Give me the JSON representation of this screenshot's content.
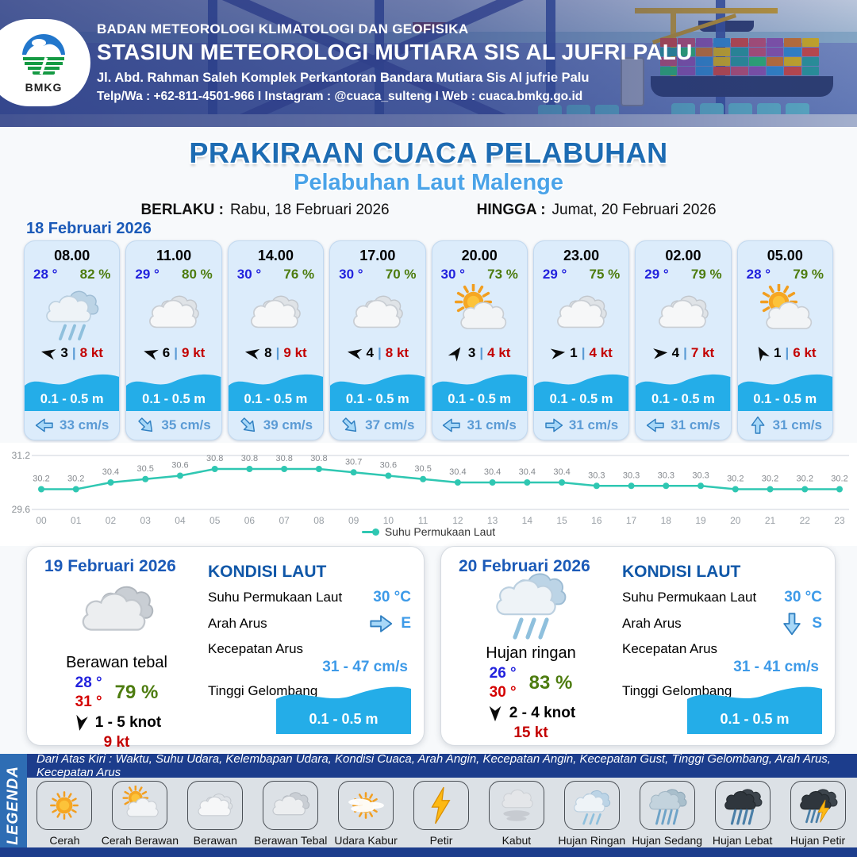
{
  "header": {
    "agency": "BADAN METEOROLOGI KLIMATOLOGI DAN GEOFISIKA",
    "station": "STASIUN METEOROLOGI MUTIARA SIS AL JUFRI PALU",
    "address": "Jl. Abd. Rahman Saleh Komplek Perkantoran Bandara Mutiara Sis Al jufrie Palu",
    "contact": "Telp/Wa : +62-811-4501-966  I  Instagram : @cuaca_sulteng  I  Web : cuaca.bmkg.go.id",
    "logo_text": "BMKG"
  },
  "title": {
    "main": "PRAKIRAAN CUACA PELABUHAN",
    "subtitle": "Pelabuhan Laut Malenge",
    "valid_label": "BERLAKU :",
    "valid_value": "Rabu, 18 Februari 2026",
    "until_label": "HINGGA :",
    "until_value": "Jumat, 20 Februari 2026"
  },
  "hourly": {
    "date": "18 Februari 2026",
    "cards": [
      {
        "time": "08.00",
        "temp": "28 °",
        "humidity": "82 %",
        "icon": "hujan-ringan",
        "wind_dir_deg": 192,
        "wind_speed": "3",
        "gust": "8 kt",
        "wave": "0.1 - 0.5 m",
        "current_dir_deg": 180,
        "current_speed": "33 cm/s"
      },
      {
        "time": "11.00",
        "temp": "29 °",
        "humidity": "80 %",
        "icon": "berawan",
        "wind_dir_deg": 196,
        "wind_speed": "6",
        "gust": "9 kt",
        "wave": "0.1 - 0.5 m",
        "current_dir_deg": 45,
        "current_speed": "35 cm/s"
      },
      {
        "time": "14.00",
        "temp": "30 °",
        "humidity": "76 %",
        "icon": "berawan",
        "wind_dir_deg": 190,
        "wind_speed": "8",
        "gust": "9 kt",
        "wave": "0.1 - 0.5 m",
        "current_dir_deg": 45,
        "current_speed": "39 cm/s"
      },
      {
        "time": "17.00",
        "temp": "30 °",
        "humidity": "70 %",
        "icon": "berawan",
        "wind_dir_deg": 190,
        "wind_speed": "4",
        "gust": "8 kt",
        "wave": "0.1 - 0.5 m",
        "current_dir_deg": 45,
        "current_speed": "37 cm/s"
      },
      {
        "time": "20.00",
        "temp": "30 °",
        "humidity": "73 %",
        "icon": "cerah-berawan",
        "wind_dir_deg": 305,
        "wind_speed": "3",
        "gust": "4 kt",
        "wave": "0.1 - 0.5 m",
        "current_dir_deg": 180,
        "current_speed": "31 cm/s"
      },
      {
        "time": "23.00",
        "temp": "29 °",
        "humidity": "75 %",
        "icon": "berawan",
        "wind_dir_deg": 352,
        "wind_speed": "1",
        "gust": "4 kt",
        "wave": "0.1 - 0.5 m",
        "current_dir_deg": 0,
        "current_speed": "31 cm/s"
      },
      {
        "time": "02.00",
        "temp": "29 °",
        "humidity": "79 %",
        "icon": "berawan",
        "wind_dir_deg": 355,
        "wind_speed": "4",
        "gust": "7 kt",
        "wave": "0.1 - 0.5 m",
        "current_dir_deg": 180,
        "current_speed": "31 cm/s"
      },
      {
        "time": "05.00",
        "temp": "28 °",
        "humidity": "79 %",
        "icon": "cerah-berawan",
        "wind_dir_deg": 242,
        "wind_speed": "1",
        "gust": "6 kt",
        "wave": "0.1 - 0.5 m",
        "current_dir_deg": 270,
        "current_speed": "31 cm/s"
      }
    ]
  },
  "chart_data": {
    "type": "line",
    "x": [
      "00",
      "01",
      "02",
      "03",
      "04",
      "05",
      "06",
      "07",
      "08",
      "09",
      "10",
      "11",
      "12",
      "13",
      "14",
      "15",
      "16",
      "17",
      "18",
      "19",
      "20",
      "21",
      "22",
      "23"
    ],
    "series": [
      {
        "name": "Suhu Permukaan Laut",
        "values": [
          30.2,
          30.2,
          30.4,
          30.5,
          30.6,
          30.8,
          30.8,
          30.8,
          30.8,
          30.7,
          30.6,
          30.5,
          30.4,
          30.4,
          30.4,
          30.4,
          30.3,
          30.3,
          30.3,
          30.3,
          30.2,
          30.2,
          30.2,
          30.2
        ]
      }
    ],
    "ylim": [
      29.6,
      31.2
    ],
    "y_ticks": [
      "31.2",
      "29.6"
    ],
    "line_color": "#2fc7b2",
    "grid": true,
    "legend_position": "bottom"
  },
  "daily": {
    "cards": [
      {
        "date": "19 Februari 2026",
        "icon": "berawan-tebal",
        "condition": "Berawan tebal",
        "temp_min": "28 °",
        "temp_max": "31 °",
        "humidity": "79 %",
        "wind_dir_deg": 100,
        "wind_range": "1 - 5 knot",
        "gust": "9 kt",
        "sea": {
          "title": "KONDISI LAUT",
          "sst_label": "Suhu Permukaan Laut",
          "sst_value": "30 °C",
          "dir_label": "Arah Arus",
          "dir_deg": 0,
          "dir_letter": "E",
          "speed_label": "Kecepatan Arus",
          "speed_value": "31 - 47 cm/s",
          "wave_label": "Tinggi Gelombang",
          "wave_value": "0.1 - 0.5 m"
        }
      },
      {
        "date": "20 Februari 2026",
        "icon": "hujan-ringan",
        "condition": "Hujan ringan",
        "temp_min": "26 °",
        "temp_max": "30 °",
        "humidity": "83 %",
        "wind_dir_deg": 90,
        "wind_range": "2 - 4 knot",
        "gust": "15 kt",
        "sea": {
          "title": "KONDISI LAUT",
          "sst_label": "Suhu Permukaan Laut",
          "sst_value": "30 °C",
          "dir_label": "Arah Arus",
          "dir_deg": 90,
          "dir_letter": "S",
          "speed_label": "Kecepatan Arus",
          "speed_value": "31 - 41 cm/s",
          "wave_label": "Tinggi Gelombang",
          "wave_value": "0.1 - 0.5 m"
        }
      }
    ]
  },
  "legend": {
    "title": "LEGENDA",
    "note": "Dari Atas Kiri : Waktu, Suhu Udara, Kelembapan Udara, Kondisi Cuaca, Arah Angin, Kecepatan Angin, Kecepatan Gust, Tinggi Gelombang, Arah Arus, Kecepatan Arus",
    "items": [
      {
        "label": "Cerah",
        "icon": "cerah"
      },
      {
        "label": "Cerah Berawan",
        "icon": "cerah-berawan"
      },
      {
        "label": "Berawan",
        "icon": "berawan"
      },
      {
        "label": "Berawan Tebal",
        "icon": "berawan-tebal"
      },
      {
        "label": "Udara Kabur",
        "icon": "udara-kabur"
      },
      {
        "label": "Petir",
        "icon": "petir"
      },
      {
        "label": "Kabut",
        "icon": "kabut"
      },
      {
        "label": "Hujan Ringan",
        "icon": "hujan-ringan"
      },
      {
        "label": "Hujan Sedang",
        "icon": "hujan-sedang"
      },
      {
        "label": "Hujan Lebat",
        "icon": "hujan-lebat"
      },
      {
        "label": "Hujan Petir",
        "icon": "hujan-petir"
      }
    ]
  }
}
